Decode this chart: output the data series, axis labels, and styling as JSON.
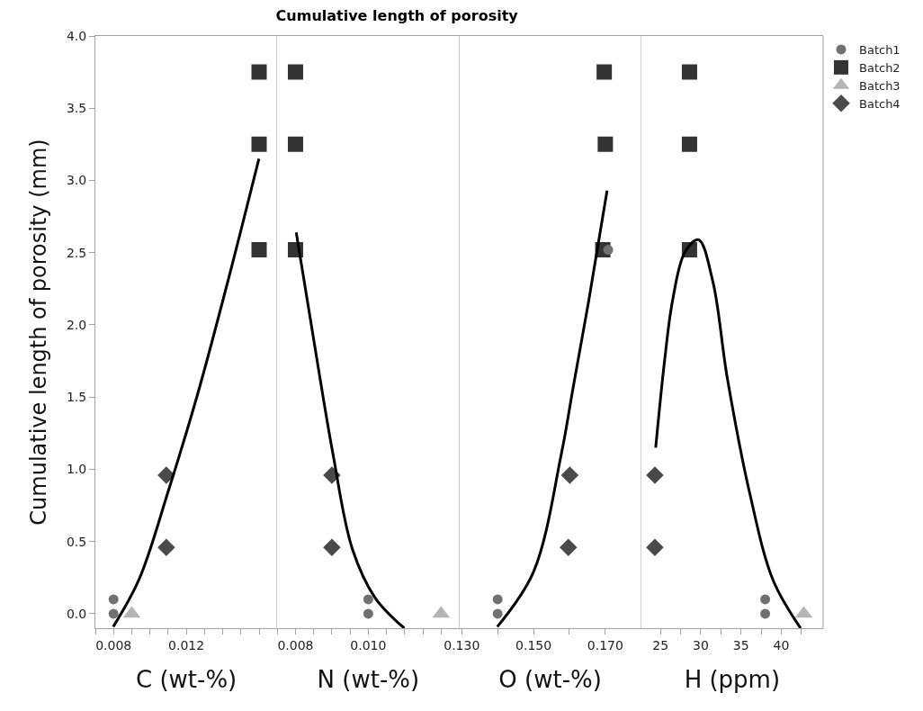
{
  "chart_data": [
    {
      "type": "scatter",
      "legend": "top right",
      "ylabel": "Cumulative length of porosity (mm)",
      "xlabel": "C (wt-%)",
      "xlim": [
        0.007,
        0.017
      ],
      "xticks": [
        {
          "value": 0.007,
          "label": null
        },
        0.008,
        {
          "value": 0.009,
          "label": null
        },
        {
          "value": 0.01,
          "label": null
        },
        {
          "value": 0.011,
          "label": null
        },
        0.012,
        {
          "value": 0.013,
          "label": null
        },
        {
          "value": 0.014,
          "label": null
        },
        {
          "value": 0.015,
          "label": null
        },
        {
          "value": 0.016,
          "label": null
        }
      ],
      "ylim": [
        -0.1,
        4.0
      ],
      "yticks": [
        {
          "value": 0,
          "label": "0.0"
        },
        0.5,
        {
          "value": 1,
          "label": "1.0"
        },
        1.5,
        {
          "value": 2,
          "label": "2.0"
        },
        2.5,
        {
          "value": 3,
          "label": "3.0"
        },
        3.5,
        {
          "value": 4,
          "label": "4.0"
        }
      ],
      "series": [
        {
          "name": "Batch1",
          "color": "#707070",
          "marker": "circle",
          "x": [
            0.008,
            0.008
          ],
          "values": [
            0.1,
            0.0
          ]
        },
        {
          "name": "Batch2",
          "color": "#333333",
          "marker": "square",
          "x": [
            0.016,
            0.016,
            0.016
          ],
          "values": [
            3.75,
            3.25,
            2.52
          ]
        },
        {
          "name": "Batch3",
          "color": "#b4b4b4",
          "marker": "triangle",
          "x": [
            0.009
          ],
          "values": [
            0.0
          ]
        },
        {
          "name": "Batch4",
          "color": "#4a4a4a",
          "marker": "diamond",
          "x": [
            0.0109,
            0.0109
          ],
          "values": [
            0.96,
            0.46
          ]
        },
        {
          "type": "line",
          "color": "#000000",
          "marker": "none",
          "x": [
            0.00798,
            0.00941,
            0.01101,
            0.01262,
            0.01432,
            0.01599
          ],
          "values": [
            -0.09,
            0.24,
            0.85,
            1.52,
            2.32,
            3.15
          ]
        }
      ]
    },
    {
      "type": "scatter",
      "title": "Cumulative length of porosity",
      "legend": "top right",
      "xlabel": "N (wt-%)",
      "xlim": [
        0.0075,
        0.0125
      ],
      "tick_labels": "x",
      "xticks": [
        {
          "value": 0.0075,
          "label": null
        },
        0.008,
        {
          "value": 0.0085,
          "label": null
        },
        {
          "value": 0.009,
          "label": null
        },
        {
          "value": 0.0095,
          "label": null
        },
        {
          "value": 0.01,
          "label": "0.010"
        },
        {
          "value": 0.0105,
          "label": null
        },
        {
          "value": 0.011,
          "label": null
        },
        {
          "value": 0.0115,
          "label": null
        },
        {
          "value": 0.012,
          "label": null
        }
      ],
      "ylim": [
        -0.1,
        4.0
      ],
      "series": [
        {
          "name": "Batch1",
          "color": "#707070",
          "marker": "circle",
          "x": [
            0.01,
            0.01
          ],
          "values": [
            0.1,
            0.0
          ]
        },
        {
          "name": "Batch2",
          "color": "#333333",
          "marker": "square",
          "x": [
            0.008,
            0.008,
            0.008
          ],
          "values": [
            3.75,
            3.25,
            2.52
          ]
        },
        {
          "name": "Batch3",
          "color": "#b4b4b4",
          "marker": "triangle",
          "x": [
            0.012
          ],
          "values": [
            0.0
          ]
        },
        {
          "name": "Batch4",
          "color": "#4a4a4a",
          "marker": "diamond",
          "x": [
            0.009,
            0.009
          ],
          "values": [
            0.96,
            0.46
          ]
        },
        {
          "type": "line",
          "color": "#000000",
          "marker": "none",
          "x": [
            0.00802,
            0.00848,
            0.00902,
            0.00956,
            0.01019,
            0.01099
          ],
          "values": [
            2.64,
            1.93,
            1.12,
            0.45,
            0.11,
            -0.1
          ]
        }
      ]
    },
    {
      "type": "scatter",
      "legend": "top right",
      "xlabel": "O (wt-%)",
      "xlim": [
        0.1293,
        0.18
      ],
      "tick_labels": "x",
      "xticks": [
        {
          "value": 0.13,
          "label": "0.130"
        },
        {
          "value": 0.14,
          "label": null
        },
        {
          "value": 0.15,
          "label": "0.150"
        },
        {
          "value": 0.16,
          "label": null
        },
        {
          "value": 0.17,
          "label": "0.170"
        }
      ],
      "ylim": [
        -0.1,
        4.0
      ],
      "series": [
        {
          "name": "Batch1",
          "color": "#707070",
          "marker": "circle",
          "x": [
            0.14,
            0.14,
            0.1708
          ],
          "values": [
            0.1,
            0.0,
            2.52
          ]
        },
        {
          "name": "Batch2",
          "color": "#333333",
          "marker": "square",
          "x": [
            0.1697,
            0.17,
            0.1693
          ],
          "values": [
            3.75,
            3.25,
            2.52
          ]
        },
        {
          "name": "Batch4",
          "color": "#4a4a4a",
          "marker": "diamond",
          "x": [
            0.1601,
            0.1597
          ],
          "values": [
            0.96,
            0.46
          ]
        },
        {
          "type": "line",
          "color": "#000000",
          "marker": "none",
          "x": [
            0.1399,
            0.15,
            0.1577,
            0.161,
            0.1654,
            0.1705
          ],
          "values": [
            -0.09,
            0.29,
            1.1,
            1.56,
            2.17,
            2.93
          ]
        }
      ]
    },
    {
      "type": "scatter",
      "xlabel": "H (ppm)",
      "xlim": [
        22.6,
        45.2
      ],
      "tick_labels": "x",
      "legend": "top right",
      "xticks": [
        25,
        {
          "value": 27.5,
          "label": null
        },
        30,
        {
          "value": 32.5,
          "label": null
        },
        35,
        {
          "value": 37.5,
          "label": null
        },
        40,
        {
          "value": 42.5,
          "label": null
        }
      ],
      "ylim": [
        -0.1,
        4.0
      ],
      "series": [
        {
          "name": "Batch1",
          "color": "#707070",
          "marker": "circle",
          "x": [
            38,
            38
          ],
          "values": [
            0.1,
            0.0
          ]
        },
        {
          "name": "Batch2",
          "color": "#333333",
          "marker": "square",
          "x": [
            28.6,
            28.6,
            28.6
          ],
          "values": [
            3.75,
            3.25,
            2.52
          ]
        },
        {
          "name": "Batch3",
          "color": "#b4b4b4",
          "marker": "triangle",
          "x": [
            42.8
          ],
          "values": [
            0.0
          ]
        },
        {
          "name": "Batch4",
          "color": "#4a4a4a",
          "marker": "diamond",
          "x": [
            24.3,
            24.3
          ],
          "values": [
            0.96,
            0.46
          ]
        },
        {
          "type": "line",
          "color": "#000000",
          "marker": "none",
          "x": [
            24.4,
            25.5,
            26.5,
            28.0,
            29.7,
            31.5,
            33.3,
            36.1,
            39.0,
            42.4
          ],
          "values": [
            1.15,
            1.75,
            2.17,
            2.5,
            2.59,
            2.3,
            1.63,
            0.83,
            0.23,
            -0.1
          ]
        }
      ]
    }
  ]
}
